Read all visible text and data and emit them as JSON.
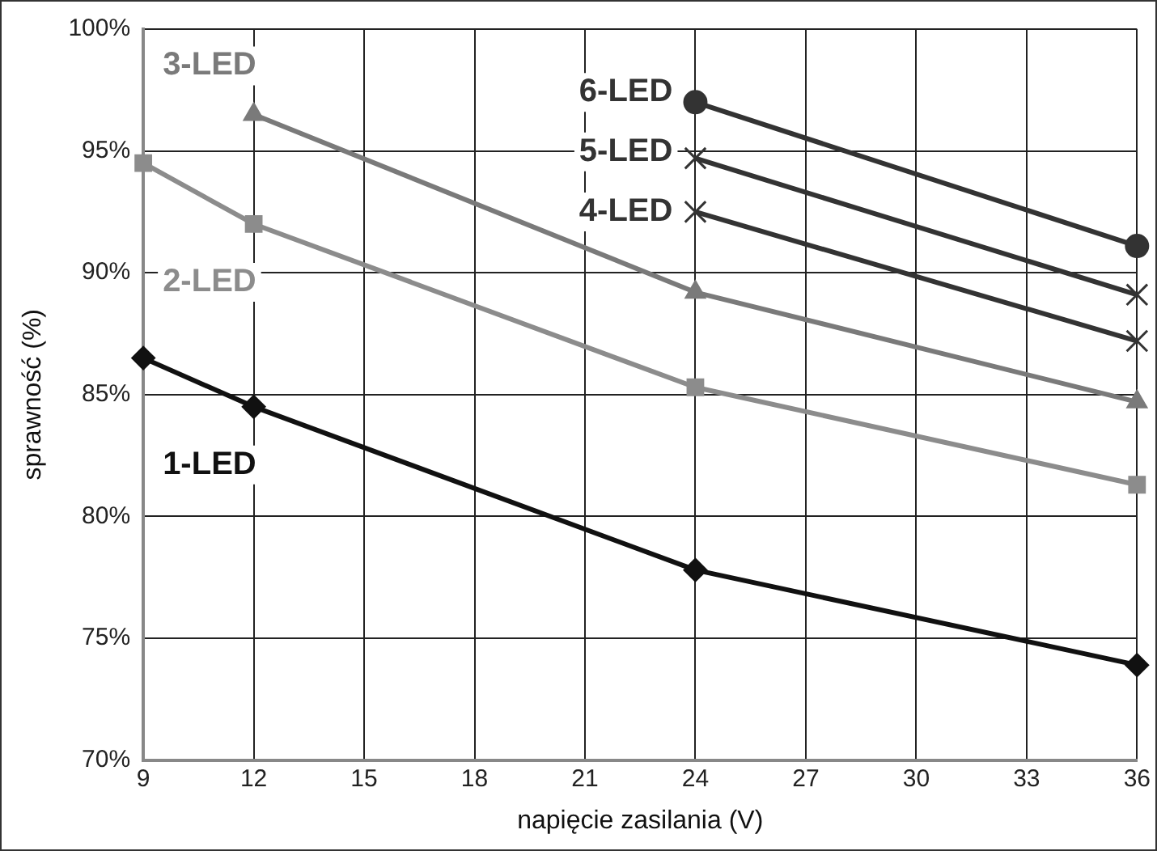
{
  "chart_data": {
    "type": "line",
    "xlabel": "napięcie zasilania (V)",
    "ylabel": "sprawność (%)",
    "xlim": [
      9,
      36
    ],
    "xticks": [
      9,
      12,
      15,
      18,
      21,
      24,
      27,
      30,
      33,
      36
    ],
    "ylim": [
      70,
      100
    ],
    "yticks": [
      {
        "value": 70,
        "label": "70%"
      },
      {
        "value": 75,
        "label": "75%"
      },
      {
        "value": 80,
        "label": "80%"
      },
      {
        "value": 85,
        "label": "85%"
      },
      {
        "value": 90,
        "label": "90%"
      },
      {
        "value": 95,
        "label": "95%"
      },
      {
        "value": 100,
        "label": "100%"
      }
    ],
    "grid": true,
    "legend": false,
    "line_style": "solid",
    "series": [
      {
        "name": "1-LED",
        "color": "#111111",
        "marker": "diamond",
        "x": [
          9,
          12,
          24,
          36
        ],
        "values": [
          86.5,
          84.5,
          77.8,
          73.9
        ]
      },
      {
        "name": "2-LED",
        "color": "#8c8c8c",
        "marker": "square",
        "x": [
          9,
          12,
          24,
          36
        ],
        "values": [
          94.5,
          92.0,
          85.3,
          81.3
        ]
      },
      {
        "name": "3-LED",
        "color": "#7a7a7a",
        "marker": "triangle",
        "x": [
          12,
          24,
          36
        ],
        "values": [
          96.5,
          89.2,
          84.7
        ]
      },
      {
        "name": "4-LED",
        "color": "#333333",
        "marker": "cross",
        "x": [
          24,
          36
        ],
        "values": [
          92.5,
          87.2
        ]
      },
      {
        "name": "5-LED",
        "color": "#333333",
        "marker": "cross",
        "x": [
          24,
          36
        ],
        "values": [
          94.7,
          89.1
        ]
      },
      {
        "name": "6-LED",
        "color": "#333333",
        "marker": "circle",
        "x": [
          24,
          36
        ],
        "values": [
          97.0,
          91.1
        ]
      }
    ]
  }
}
